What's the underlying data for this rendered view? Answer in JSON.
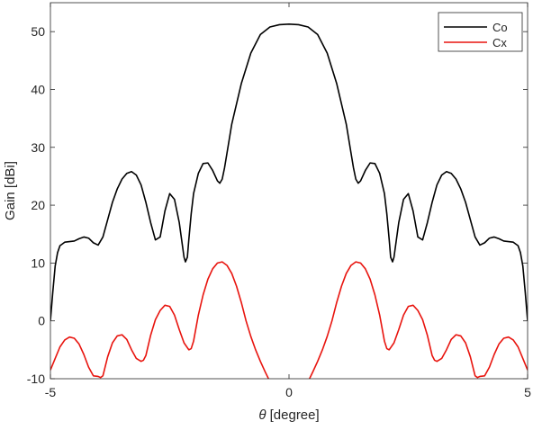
{
  "chart_data": {
    "type": "line",
    "title": "",
    "xlabel_symbol": "θ",
    "xlabel_rest": " [degree]",
    "ylabel": "Gain [dBi]",
    "xlim": [
      -5,
      5
    ],
    "ylim": [
      -10,
      55
    ],
    "xticks": [
      "-5",
      "0",
      "5"
    ],
    "yticks": [
      "-10",
      "0",
      "10",
      "20",
      "30",
      "40",
      "50"
    ],
    "grid": false,
    "legend_position": "top-right",
    "series": [
      {
        "name": "Co",
        "color": "#000000",
        "x": [
          -5,
          -4.95,
          -4.9,
          -4.85,
          -4.8,
          -4.7,
          -4.6,
          -4.5,
          -4.4,
          -4.3,
          -4.2,
          -4.1,
          -4.0,
          -3.9,
          -3.8,
          -3.7,
          -3.6,
          -3.5,
          -3.4,
          -3.3,
          -3.2,
          -3.1,
          -3.0,
          -2.9,
          -2.8,
          -2.7,
          -2.6,
          -2.5,
          -2.4,
          -2.3,
          -2.25,
          -2.2,
          -2.17,
          -2.13,
          -2.1,
          -2.05,
          -2.0,
          -1.9,
          -1.8,
          -1.7,
          -1.6,
          -1.5,
          -1.45,
          -1.4,
          -1.35,
          -1.3,
          -1.2,
          -1.0,
          -0.8,
          -0.6,
          -0.4,
          -0.2,
          0.0,
          0.2,
          0.4,
          0.6,
          0.8,
          1.0,
          1.2,
          1.3,
          1.35,
          1.4,
          1.45,
          1.5,
          1.6,
          1.7,
          1.8,
          1.9,
          2.0,
          2.05,
          2.1,
          2.13,
          2.17,
          2.2,
          2.25,
          2.3,
          2.4,
          2.5,
          2.6,
          2.7,
          2.8,
          2.9,
          3.0,
          3.1,
          3.2,
          3.3,
          3.4,
          3.5,
          3.6,
          3.7,
          3.8,
          3.9,
          4.0,
          4.1,
          4.2,
          4.3,
          4.4,
          4.5,
          4.6,
          4.7,
          4.8,
          4.85,
          4.9,
          4.95,
          5
        ],
        "y": [
          0,
          5,
          9.5,
          11.8,
          13,
          13.6,
          13.7,
          13.8,
          14.2,
          14.5,
          14.3,
          13.5,
          13.1,
          14.5,
          17.5,
          20.5,
          22.8,
          24.5,
          25.5,
          25.8,
          25.2,
          23.5,
          20.5,
          17,
          14,
          14.5,
          19,
          22,
          21,
          17,
          14,
          11,
          10.2,
          11,
          14,
          18.5,
          22,
          25.5,
          27.2,
          27.3,
          26,
          24.2,
          23.8,
          24.5,
          26.5,
          29,
          34,
          41,
          46.3,
          49.5,
          50.8,
          51.2,
          51.3,
          51.2,
          50.8,
          49.5,
          46.3,
          41,
          34,
          29,
          26.5,
          24.5,
          23.8,
          24.2,
          26,
          27.3,
          27.2,
          25.5,
          22,
          18.5,
          14,
          11,
          10.2,
          11,
          14,
          17,
          21,
          22,
          19,
          14.5,
          14,
          17,
          20.5,
          23.5,
          25.2,
          25.8,
          25.5,
          24.5,
          22.8,
          20.5,
          17.5,
          14.5,
          13.1,
          13.5,
          14.3,
          14.5,
          14.2,
          13.8,
          13.7,
          13.6,
          13,
          11.8,
          9.5,
          5,
          0
        ]
      },
      {
        "name": "Cx",
        "color": "#e8140e",
        "x": [
          -5,
          -4.9,
          -4.8,
          -4.7,
          -4.6,
          -4.5,
          -4.4,
          -4.3,
          -4.2,
          -4.1,
          -4.0,
          -3.95,
          -3.9,
          -3.8,
          -3.7,
          -3.6,
          -3.5,
          -3.4,
          -3.3,
          -3.2,
          -3.1,
          -3.05,
          -3.0,
          -2.9,
          -2.8,
          -2.7,
          -2.6,
          -2.5,
          -2.4,
          -2.3,
          -2.2,
          -2.1,
          -2.05,
          -2.0,
          -1.9,
          -1.8,
          -1.7,
          -1.6,
          -1.5,
          -1.4,
          -1.3,
          -1.2,
          -1.1,
          -1.0,
          -0.9,
          -0.8,
          -0.7,
          -0.6,
          -0.5,
          -0.4,
          -0.3,
          -0.2,
          -0.15,
          -0.12,
          null,
          0.12,
          0.15,
          0.2,
          0.3,
          0.4,
          0.5,
          0.6,
          0.7,
          0.8,
          0.9,
          1.0,
          1.1,
          1.2,
          1.3,
          1.4,
          1.5,
          1.6,
          1.7,
          1.8,
          1.9,
          2.0,
          2.05,
          2.1,
          2.2,
          2.3,
          2.4,
          2.5,
          2.6,
          2.7,
          2.8,
          2.9,
          3.0,
          3.05,
          3.1,
          3.2,
          3.3,
          3.4,
          3.5,
          3.6,
          3.7,
          3.8,
          3.9,
          3.95,
          4.0,
          4.1,
          4.2,
          4.3,
          4.4,
          4.5,
          4.6,
          4.7,
          4.8,
          4.9,
          5
        ],
        "y": [
          -8.5,
          -6.5,
          -4.5,
          -3.3,
          -2.8,
          -3.0,
          -4.0,
          -5.8,
          -8.0,
          -9.5,
          -9.6,
          -9.8,
          -9.5,
          -6.2,
          -3.8,
          -2.6,
          -2.4,
          -3.2,
          -5.0,
          -6.5,
          -7.0,
          -6.8,
          -6.0,
          -2.5,
          0.2,
          1.8,
          2.7,
          2.5,
          1.0,
          -1.5,
          -3.8,
          -5.0,
          -4.8,
          -3.5,
          1.0,
          4.5,
          7.2,
          9.0,
          10.0,
          10.2,
          9.6,
          8.2,
          6.0,
          3.2,
          0.0,
          -2.7,
          -5.0,
          -7.0,
          -8.8,
          -10.5,
          -12,
          -13,
          -13,
          -13,
          null,
          -13,
          -13,
          -13,
          -12,
          -10.5,
          -8.8,
          -7.0,
          -5.0,
          -2.7,
          0.0,
          3.2,
          6.0,
          8.2,
          9.6,
          10.2,
          10.0,
          9.0,
          7.2,
          4.5,
          1.0,
          -3.5,
          -4.8,
          -5.0,
          -3.8,
          -1.5,
          1.0,
          2.5,
          2.7,
          1.8,
          0.2,
          -2.5,
          -6.0,
          -6.8,
          -7.0,
          -6.5,
          -5.0,
          -3.2,
          -2.4,
          -2.6,
          -3.8,
          -6.2,
          -9.5,
          -9.8,
          -9.6,
          -9.5,
          -8.0,
          -5.8,
          -4.0,
          -3.0,
          -2.8,
          -3.3,
          -4.5,
          -6.5,
          -8.5
        ]
      }
    ]
  }
}
